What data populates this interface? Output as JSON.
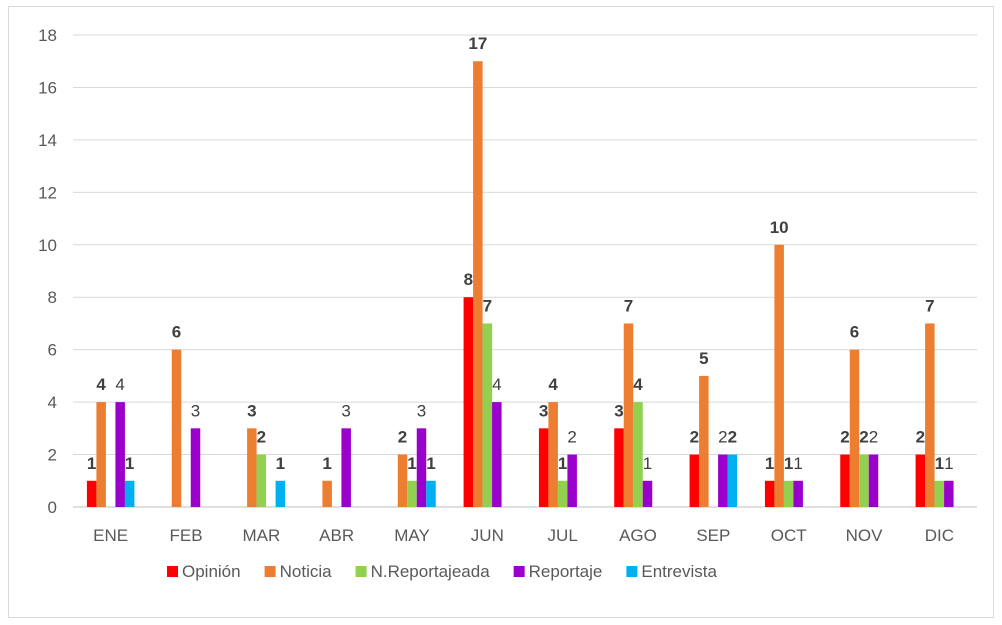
{
  "chart_data": {
    "type": "bar",
    "title": "",
    "xlabel": "",
    "ylabel": "",
    "ylim": [
      0,
      18
    ],
    "yticks": [
      0,
      2,
      4,
      6,
      8,
      10,
      12,
      14,
      16,
      18
    ],
    "grid": true,
    "legend_position": "bottom",
    "categories": [
      "ENE",
      "FEB",
      "MAR",
      "ABR",
      "MAY",
      "JUN",
      "JUL",
      "AGO",
      "SEP",
      "OCT",
      "NOV",
      "DIC"
    ],
    "series": [
      {
        "name": "Opinión",
        "color": "#ff0000",
        "values": [
          1,
          0,
          0,
          0,
          0,
          8,
          3,
          3,
          2,
          1,
          2,
          2
        ],
        "labels_bold": true
      },
      {
        "name": "Noticia",
        "color": "#ed7d31",
        "values": [
          4,
          6,
          3,
          1,
          2,
          17,
          4,
          7,
          5,
          10,
          6,
          7
        ],
        "labels_bold": true
      },
      {
        "name": "N.Reportajeada",
        "color": "#92d050",
        "values": [
          0,
          0,
          2,
          0,
          1,
          7,
          1,
          4,
          0,
          1,
          2,
          1
        ],
        "labels_bold": true
      },
      {
        "name": "Reportaje",
        "color": "#9900cc",
        "values": [
          4,
          3,
          0,
          3,
          3,
          4,
          2,
          1,
          2,
          1,
          2,
          1
        ],
        "labels_bold": false
      },
      {
        "name": "Entrevista",
        "color": "#00b0f0",
        "values": [
          1,
          0,
          1,
          0,
          1,
          0,
          0,
          0,
          2,
          0,
          0,
          0
        ],
        "labels_bold": true
      }
    ]
  }
}
